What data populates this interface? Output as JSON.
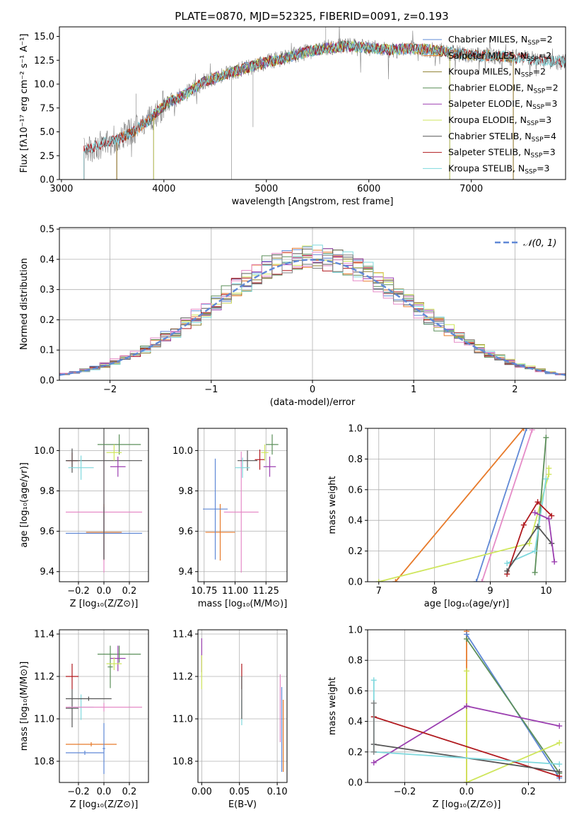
{
  "figure": {
    "title": "PLATE=0870, MJD=52325, FIBERID=0091, z=0.193"
  },
  "colors": {
    "cmiles": "#5f88d6",
    "smiles": "#e77a2a",
    "kmiles": "#8e8030",
    "celodie": "#5c8f5a",
    "selodie": "#9b3fb0",
    "kelodie": "#cfe65d",
    "cstelib": "#555555",
    "sstelib": "#b0191e",
    "kstelib": "#7fd8dd",
    "gray": "#808080",
    "pink": "#e58bc7",
    "grid": "#b0b0b0"
  },
  "chart_data": [
    {
      "id": "spectrum",
      "type": "line",
      "title": "PLATE=0870, MJD=52325, FIBERID=0091, z=0.193",
      "xlabel": "wavelength [Angstrom, rest frame]",
      "ylabel": "Flux [fλ10⁻¹⁷ erg cm⁻² s⁻¹ A⁻¹]",
      "xlim": [
        2980,
        7920
      ],
      "ylim": [
        0,
        16
      ],
      "xticks": [
        3000,
        4000,
        5000,
        6000,
        7000
      ],
      "yticks": [
        0.0,
        2.5,
        5.0,
        7.5,
        10.0,
        12.5,
        15.0
      ],
      "grid": false,
      "legend_position": "upper-right",
      "legend": [
        {
          "label": "Chabrier MILES, N",
          "sub": "SSP",
          "tail": "=2",
          "color": "cmiles"
        },
        {
          "label": "Salpeter MILES, N",
          "sub": "SSP",
          "tail": "=2",
          "color": "smiles"
        },
        {
          "label": "Kroupa MILES, N",
          "sub": "SSP",
          "tail": "=2",
          "color": "kmiles"
        },
        {
          "label": "Chabrier ELODIE, N",
          "sub": "SSP",
          "tail": "=2",
          "color": "celodie"
        },
        {
          "label": "Salpeter ELODIE, N",
          "sub": "SSP",
          "tail": "=3",
          "color": "selodie"
        },
        {
          "label": "Kroupa ELODIE, N",
          "sub": "SSP",
          "tail": "=3",
          "color": "kelodie"
        },
        {
          "label": "Chabrier STELIB, N",
          "sub": "SSP",
          "tail": "=4",
          "color": "cstelib"
        },
        {
          "label": "Salpeter STELIB, N",
          "sub": "SSP",
          "tail": "=3",
          "color": "sstelib"
        },
        {
          "label": "Kroupa STELIB, N",
          "sub": "SSP",
          "tail": "=3",
          "color": "kstelib"
        }
      ],
      "continuum": {
        "x": [
          3220,
          3400,
          3550,
          3700,
          3850,
          4000,
          4200,
          4400,
          4600,
          4800,
          5000,
          5200,
          5400,
          5600,
          5800,
          6000,
          6200,
          6400,
          6600,
          6800,
          7000,
          7200,
          7400,
          7600,
          7800,
          7900
        ],
        "y": [
          3.0,
          3.8,
          4.2,
          5.0,
          6.2,
          7.8,
          8.9,
          10.3,
          11.0,
          11.7,
          12.3,
          12.8,
          13.4,
          13.8,
          14.0,
          13.8,
          13.6,
          13.7,
          13.6,
          13.3,
          13.0,
          13.0,
          12.8,
          12.6,
          12.4,
          12.3
        ]
      },
      "model_ranges": {
        "cmiles": [
          3540,
          7410
        ],
        "smiles": [
          3540,
          7410
        ],
        "kmiles": [
          3540,
          7410
        ],
        "celodie": [
          3900,
          6790
        ],
        "selodie": [
          3900,
          6790
        ],
        "kelodie": [
          3900,
          6790
        ],
        "cstelib": [
          3220,
          7920
        ],
        "sstelib": [
          3220,
          7920
        ],
        "kstelib": [
          3220,
          7920
        ]
      }
    },
    {
      "id": "residuals",
      "type": "line",
      "xlabel": "(data-model)/error",
      "ylabel": "Normed distribution",
      "xlim": [
        -2.5,
        2.5
      ],
      "ylim": [
        0,
        0.505
      ],
      "xticks": [
        -2,
        -1,
        0,
        1,
        2
      ],
      "yticks": [
        0.0,
        0.1,
        0.2,
        0.3,
        0.4,
        0.5
      ],
      "grid": true,
      "legend_position": "upper-right",
      "legend": [
        {
          "label": "𝒩(0, 1)",
          "color": "cmiles",
          "style": "dashed"
        }
      ],
      "gaussian": {
        "mean": 0,
        "sigma": 1
      },
      "histograms": [
        "cmiles",
        "smiles",
        "kmiles",
        "celodie",
        "selodie",
        "kelodie",
        "cstelib",
        "sstelib",
        "kstelib",
        "pink",
        "gray"
      ]
    },
    {
      "id": "age-vs-z",
      "type": "scatter",
      "xlabel": "Z [log₁₀(Z/Z⊙)]",
      "ylabel": "age  [log₁₀(age/yr)]",
      "xlim": [
        -0.35,
        0.35
      ],
      "ylim": [
        9.35,
        10.11
      ],
      "xticks": [
        -0.2,
        0.0,
        0.2
      ],
      "yticks": [
        9.4,
        9.6,
        9.8,
        10.0
      ],
      "grid": true,
      "points": [
        {
          "x": 0.0,
          "y": 9.595,
          "xerr": 0.14,
          "yerr": 0.14,
          "color": "smiles"
        },
        {
          "x": 0.0,
          "y": 9.59,
          "xerr": 0.3,
          "yerr": 0.13,
          "color": "cmiles"
        },
        {
          "x": 0.0,
          "y": 9.695,
          "xerr": 0.3,
          "yerr": 0.3,
          "color": "pink"
        },
        {
          "x": 0.0,
          "y": 9.95,
          "xerr": 0.3,
          "yerr": 0.49,
          "color": "cstelib"
        },
        {
          "x": -0.25,
          "y": 9.95,
          "xerr": 0.04,
          "yerr": 0.04,
          "color": "sstelib"
        },
        {
          "x": -0.25,
          "y": 9.95,
          "xerr": 0.05,
          "yerr": 0.06,
          "color": "cstelib"
        },
        {
          "x": -0.18,
          "y": 9.915,
          "xerr": 0.1,
          "yerr": 0.06,
          "color": "kstelib"
        },
        {
          "x": 0.12,
          "y": 10.03,
          "xerr": 0.17,
          "yerr": 0.05,
          "color": "celodie"
        },
        {
          "x": 0.11,
          "y": 9.92,
          "xerr": 0.06,
          "yerr": 0.05,
          "color": "selodie"
        },
        {
          "x": 0.08,
          "y": 9.99,
          "xerr": 0.06,
          "yerr": 0.04,
          "color": "kelodie"
        }
      ]
    },
    {
      "id": "age-vs-mass",
      "type": "scatter",
      "xlabel": "mass [log₁₀(M/M⊙)]",
      "ylabel": "",
      "xlim": [
        10.7,
        11.42
      ],
      "ylim": [
        9.35,
        10.11
      ],
      "xticks": [
        10.75,
        11.0,
        11.25
      ],
      "yticks": [
        9.4,
        9.6,
        9.8,
        10.0
      ],
      "grid": true,
      "points": [
        {
          "x": 10.88,
          "y": 9.595,
          "xerr": 0.12,
          "yerr": 0.14,
          "color": "smiles"
        },
        {
          "x": 10.84,
          "y": 9.71,
          "xerr": 0.1,
          "yerr": 0.25,
          "color": "cmiles"
        },
        {
          "x": 11.05,
          "y": 9.695,
          "xerr": 0.14,
          "yerr": 0.3,
          "color": "pink"
        },
        {
          "x": 11.1,
          "y": 9.95,
          "xerr": 0.08,
          "yerr": 0.05,
          "color": "cstelib"
        },
        {
          "x": 11.2,
          "y": 9.955,
          "xerr": 0.04,
          "yerr": 0.05,
          "color": "sstelib"
        },
        {
          "x": 11.06,
          "y": 9.915,
          "xerr": 0.06,
          "yerr": 0.05,
          "color": "kstelib"
        },
        {
          "x": 11.3,
          "y": 10.03,
          "xerr": 0.05,
          "yerr": 0.05,
          "color": "celodie"
        },
        {
          "x": 11.28,
          "y": 9.92,
          "xerr": 0.05,
          "yerr": 0.05,
          "color": "selodie"
        },
        {
          "x": 11.24,
          "y": 9.99,
          "xerr": 0.03,
          "yerr": 0.04,
          "color": "kelodie"
        }
      ]
    },
    {
      "id": "weight-vs-age",
      "type": "line",
      "xlabel": "age  [log₁₀(age/yr)]",
      "ylabel": "mass weight",
      "xlim": [
        6.8,
        10.35
      ],
      "ylim": [
        0,
        1
      ],
      "xticks": [
        7,
        8,
        9,
        10
      ],
      "yticks": [
        0.0,
        0.2,
        0.4,
        0.6,
        0.8,
        1.0
      ],
      "grid": true,
      "series": [
        {
          "color": "smiles",
          "x": [
            7.3,
            9.6
          ],
          "y": [
            0.0,
            1.0
          ]
        },
        {
          "color": "cmiles",
          "x": [
            8.75,
            9.65
          ],
          "y": [
            0.0,
            1.0
          ]
        },
        {
          "color": "pink",
          "x": [
            8.85,
            9.75
          ],
          "y": [
            0.0,
            0.99
          ]
        },
        {
          "color": "kelodie",
          "x": [
            7.0,
            9.7,
            10.05,
            10.05
          ],
          "y": [
            0.0,
            0.25,
            0.7,
            0.74
          ]
        },
        {
          "color": "celodie",
          "x": [
            9.8,
            10.0
          ],
          "y": [
            0.06,
            0.94
          ]
        },
        {
          "color": "kstelib",
          "x": [
            9.3,
            9.8,
            10.0
          ],
          "y": [
            0.12,
            0.2,
            0.67
          ]
        },
        {
          "color": "sstelib",
          "x": [
            9.3,
            9.6,
            9.85,
            10.1
          ],
          "y": [
            0.05,
            0.37,
            0.52,
            0.43
          ]
        },
        {
          "color": "cstelib",
          "x": [
            9.3,
            9.85,
            10.1
          ],
          "y": [
            0.07,
            0.36,
            0.25
          ]
        },
        {
          "color": "selodie",
          "x": [
            9.8,
            10.05,
            10.15
          ],
          "y": [
            0.45,
            0.41,
            0.13
          ]
        }
      ]
    },
    {
      "id": "mass-vs-z",
      "type": "scatter",
      "xlabel": "Z [log₁₀(Z/Z⊙)]",
      "ylabel": "mass [log₁₀(M/M⊙)]",
      "xlim": [
        -0.35,
        0.35
      ],
      "ylim": [
        10.7,
        11.42
      ],
      "xticks": [
        -0.2,
        0.0,
        0.2
      ],
      "yticks": [
        10.8,
        11.0,
        11.2,
        11.4
      ],
      "grid": true,
      "points": [
        {
          "x": -0.25,
          "y": 11.2,
          "xerr": 0.05,
          "yerr": 0.06,
          "color": "sstelib"
        },
        {
          "x": -0.25,
          "y": 11.05,
          "xerr": 0.05,
          "yerr": 0.09,
          "color": "cstelib"
        },
        {
          "x": -0.18,
          "y": 11.055,
          "xerr": 0.1,
          "yerr": 0.06,
          "color": "kstelib"
        },
        {
          "x": -0.12,
          "y": 11.095,
          "xerr": 0.18,
          "yerr": 0.01,
          "color": "cstelib"
        },
        {
          "x": 0.0,
          "y": 11.055,
          "xerr": 0.3,
          "yerr": 0.02,
          "color": "pink"
        },
        {
          "x": -0.1,
          "y": 10.88,
          "xerr": 0.2,
          "yerr": 0.01,
          "color": "smiles"
        },
        {
          "x": -0.15,
          "y": 10.84,
          "xerr": 0.15,
          "yerr": 0.01,
          "color": "cmiles"
        },
        {
          "x": 0.0,
          "y": 10.86,
          "xerr": 0.01,
          "yerr": 0.12,
          "color": "cmiles"
        },
        {
          "x": 0.12,
          "y": 11.305,
          "xerr": 0.17,
          "yerr": 0.04,
          "color": "celodie"
        },
        {
          "x": 0.05,
          "y": 11.245,
          "xerr": 0.02,
          "yerr": 0.1,
          "color": "celodie"
        },
        {
          "x": 0.11,
          "y": 11.285,
          "xerr": 0.06,
          "yerr": 0.06,
          "color": "selodie"
        },
        {
          "x": 0.08,
          "y": 11.26,
          "xerr": 0.06,
          "yerr": 0.03,
          "color": "kelodie"
        }
      ]
    },
    {
      "id": "mass-vs-ebv",
      "type": "scatter",
      "xlabel": "E(B-V)",
      "ylabel": "",
      "xlim": [
        -0.005,
        0.113
      ],
      "ylim": [
        10.7,
        11.42
      ],
      "xticks": [
        0.0,
        0.05,
        0.1
      ],
      "yticks": [
        10.8,
        11.0,
        11.2,
        11.4
      ],
      "grid": true,
      "points": [
        {
          "x": 0.0,
          "y": 11.3,
          "xerr": 0,
          "yerr": 0.08,
          "color": "selodie"
        },
        {
          "x": 0.0,
          "y": 11.22,
          "xerr": 0,
          "yerr": 0.08,
          "color": "kelodie"
        },
        {
          "x": 0.053,
          "y": 11.2,
          "xerr": 0,
          "yerr": 0.06,
          "color": "sstelib"
        },
        {
          "x": 0.053,
          "y": 11.03,
          "xerr": 0,
          "yerr": 0.06,
          "color": "kstelib"
        },
        {
          "x": 0.053,
          "y": 11.1,
          "xerr": 0,
          "yerr": 0.1,
          "color": "cstelib"
        },
        {
          "x": 0.106,
          "y": 10.95,
          "xerr": 0,
          "yerr": 0.2,
          "color": "cmiles"
        },
        {
          "x": 0.108,
          "y": 10.92,
          "xerr": 0,
          "yerr": 0.17,
          "color": "smiles"
        },
        {
          "x": 0.104,
          "y": 11.05,
          "xerr": 0,
          "yerr": 0.16,
          "color": "pink"
        }
      ]
    },
    {
      "id": "weight-vs-z",
      "type": "line",
      "xlabel": "Z [log₁₀(Z/Z⊙)]",
      "ylabel": "mass weight",
      "xlim": [
        -0.32,
        0.32
      ],
      "ylim": [
        0,
        1
      ],
      "xticks": [
        -0.2,
        0.0,
        0.2
      ],
      "yticks": [
        0.0,
        0.2,
        0.4,
        0.6,
        0.8,
        1.0
      ],
      "grid": true,
      "series": [
        {
          "color": "smiles",
          "x": [
            0.0,
            0.0
          ],
          "y": [
            0.0,
            0.99
          ]
        },
        {
          "color": "cmiles",
          "x": [
            0.0,
            0.3
          ],
          "y": [
            0.97,
            0.03
          ]
        },
        {
          "color": "celodie",
          "x": [
            0.0,
            0.3
          ],
          "y": [
            0.94,
            0.06
          ]
        },
        {
          "color": "kelodie",
          "x": [
            0.0,
            0.0,
            0.3
          ],
          "y": [
            0.73,
            0.0,
            0.26
          ]
        },
        {
          "color": "selodie",
          "x": [
            -0.3,
            0.0,
            0.3
          ],
          "y": [
            0.13,
            0.5,
            0.37
          ]
        },
        {
          "color": "sstelib",
          "x": [
            -0.3,
            0.3
          ],
          "y": [
            0.43,
            0.04
          ]
        },
        {
          "color": "cstelib",
          "x": [
            -0.3,
            0.3
          ],
          "y": [
            0.25,
            0.07
          ]
        },
        {
          "color": "kstelib",
          "x": [
            -0.3,
            -0.3,
            0.3
          ],
          "y": [
            0.67,
            0.2,
            0.12
          ]
        },
        {
          "color": "gray",
          "x": [
            -0.3,
            -0.3
          ],
          "y": [
            0.2,
            0.52
          ]
        }
      ]
    }
  ]
}
